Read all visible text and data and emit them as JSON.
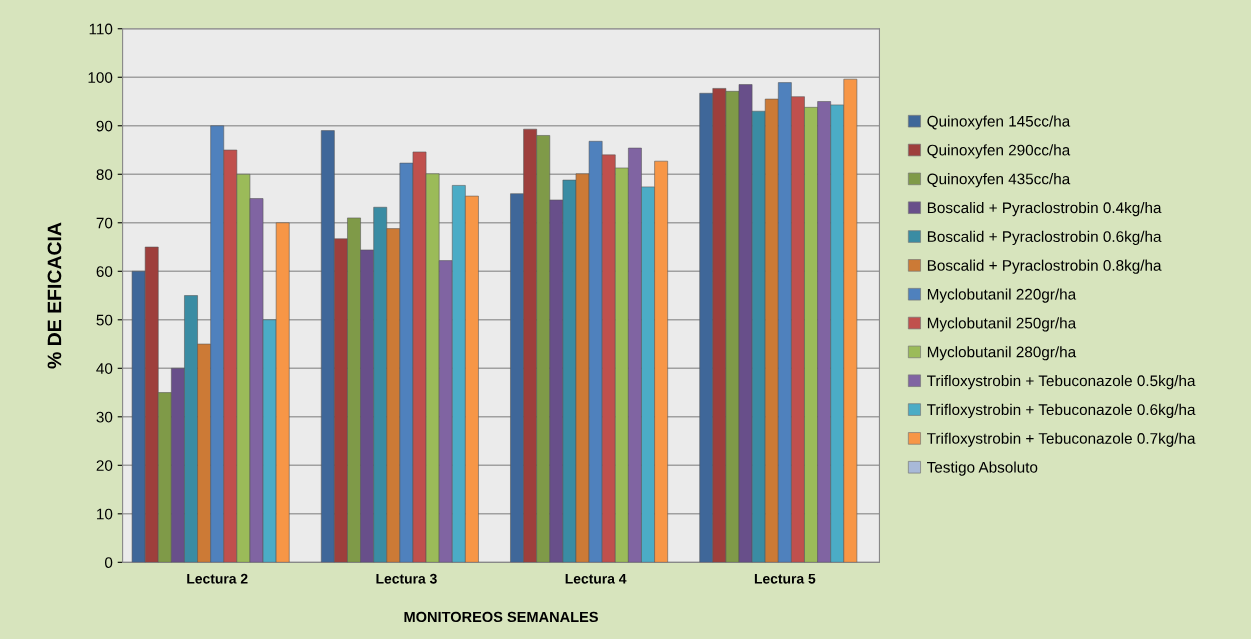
{
  "chart_data": {
    "type": "bar",
    "xlabel": "MONITOREOS SEMANALES",
    "ylabel": "% DE EFICACIA",
    "categories": [
      "Lectura 2",
      "Lectura 3",
      "Lectura 4",
      "Lectura 5"
    ],
    "series": [
      {
        "name": "Quinoxyfen 145cc/ha",
        "color": "#3f6799",
        "values": [
          60,
          89.0,
          76.0,
          96.7
        ]
      },
      {
        "name": "Quinoxyfen 290cc/ha",
        "color": "#9e3f3c",
        "values": [
          65,
          66.7,
          89.3,
          97.7
        ]
      },
      {
        "name": "Quinoxyfen 435cc/ha",
        "color": "#7f9a48",
        "values": [
          35,
          71.0,
          88.0,
          97.1
        ]
      },
      {
        "name": "Boscalid + Pyraclostrobin 0.4kg/ha",
        "color": "#684f8a",
        "values": [
          40,
          64.4,
          74.7,
          98.5
        ]
      },
      {
        "name": "Boscalid + Pyraclostrobin 0.6kg/ha",
        "color": "#3a8ca3",
        "values": [
          55,
          73.2,
          78.8,
          93.0
        ]
      },
      {
        "name": "Boscalid + Pyraclostrobin 0.8kg/ha",
        "color": "#cc7a36",
        "values": [
          45,
          68.8,
          80.1,
          95.5
        ]
      },
      {
        "name": "Myclobutanil 220gr/ha",
        "color": "#4f81bd",
        "values": [
          90,
          82.3,
          86.8,
          98.9
        ]
      },
      {
        "name": "Myclobutanil 250gr/ha",
        "color": "#c0504d",
        "values": [
          85,
          84.6,
          84.0,
          96.0
        ]
      },
      {
        "name": "Myclobutanil 280gr/ha",
        "color": "#9bbb59",
        "values": [
          80,
          80.1,
          81.3,
          93.8
        ]
      },
      {
        "name": "Trifloxystrobin + Tebuconazole 0.5kg/ha",
        "color": "#8064a2",
        "values": [
          75,
          62.2,
          85.4,
          95.0
        ]
      },
      {
        "name": "Trifloxystrobin + Tebuconazole 0.6kg/ha",
        "color": "#4bacc6",
        "values": [
          50,
          77.7,
          77.4,
          94.3
        ]
      },
      {
        "name": "Trifloxystrobin + Tebuconazole 0.7kg/ha",
        "color": "#f79646",
        "values": [
          70,
          75.5,
          82.7,
          99.6
        ]
      },
      {
        "name": "Testigo Absoluto",
        "color": "#a8b9d8",
        "values": [
          null,
          null,
          null,
          null
        ]
      }
    ],
    "ylim": [
      0,
      110
    ],
    "yticks": [
      0,
      10,
      20,
      30,
      40,
      50,
      60,
      70,
      80,
      90,
      100,
      110
    ],
    "grid": "y",
    "legend": "right"
  }
}
